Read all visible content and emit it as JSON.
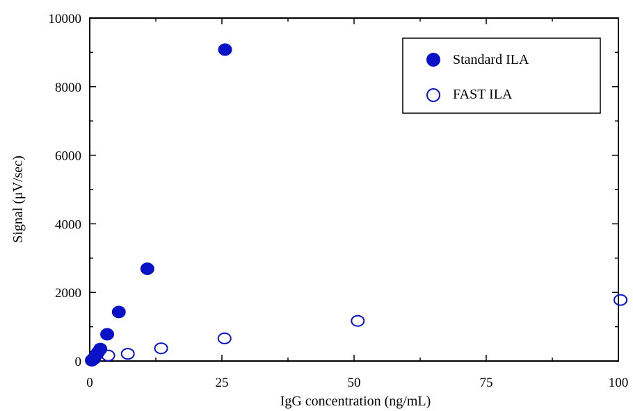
{
  "chart_data": {
    "type": "scatter",
    "xlabel": "IgG concentration (ng/mL)",
    "ylabel": "Signal (μV/sec)",
    "xlim": [
      0,
      100
    ],
    "ylim": [
      0,
      10000
    ],
    "x_ticks": [
      0,
      25,
      50,
      75,
      100
    ],
    "x_tick_labels": [
      "0",
      "25",
      "50",
      "75",
      "100"
    ],
    "y_ticks": [
      0,
      2000,
      4000,
      6000,
      8000,
      10000
    ],
    "y_tick_labels": [
      "0",
      "2000",
      "4000",
      "6000",
      "8000",
      "10000"
    ],
    "grid": false,
    "legend_position": "top-right",
    "series": [
      {
        "name": "Standard ILA",
        "marker": "filled-circle",
        "color": "#0a12c8",
        "points": [
          {
            "x": 0.4,
            "y": 20
          },
          {
            "x": 0.8,
            "y": 80
          },
          {
            "x": 1.2,
            "y": 180
          },
          {
            "x": 1.6,
            "y": 260
          },
          {
            "x": 2.0,
            "y": 350
          },
          {
            "x": 3.3,
            "y": 780
          },
          {
            "x": 5.5,
            "y": 1430
          },
          {
            "x": 10.9,
            "y": 2690
          },
          {
            "x": 25.6,
            "y": 9080
          }
        ]
      },
      {
        "name": "FAST ILA",
        "marker": "open-circle",
        "color": "#0a12c8",
        "points": [
          {
            "x": 0.8,
            "y": 60
          },
          {
            "x": 3.5,
            "y": 160
          },
          {
            "x": 7.2,
            "y": 210
          },
          {
            "x": 13.5,
            "y": 370
          },
          {
            "x": 25.5,
            "y": 660
          },
          {
            "x": 50.7,
            "y": 1170
          },
          {
            "x": 100.4,
            "y": 1780
          }
        ]
      }
    ]
  }
}
